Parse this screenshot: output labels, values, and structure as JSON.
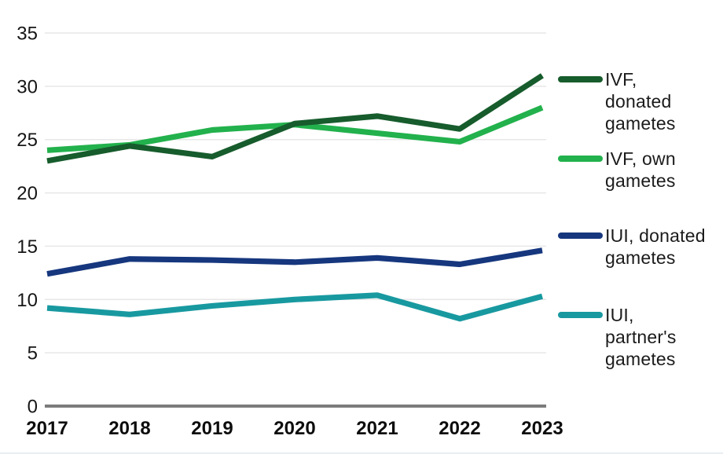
{
  "chart_data": {
    "type": "line",
    "title": "",
    "xlabel": "",
    "ylabel": "",
    "x": [
      "2017",
      "2018",
      "2019",
      "2020",
      "2021",
      "2022",
      "2023"
    ],
    "series": [
      {
        "id": "ivf-donated-gametes",
        "name": "IVF, donated gametes",
        "label_lines": [
          "IVF,",
          "donated",
          "gametes"
        ],
        "color": "#175c2c",
        "values": [
          23.0,
          24.4,
          23.4,
          26.5,
          27.2,
          26.0,
          31.0
        ]
      },
      {
        "id": "ivf-own-gametes",
        "name": "IVF, own gametes",
        "label_lines": [
          "IVF, own",
          "gametes"
        ],
        "color": "#22b14c",
        "values": [
          24.0,
          24.5,
          25.9,
          26.4,
          25.6,
          24.8,
          28.0
        ]
      },
      {
        "id": "iui-donated-gametes",
        "name": "IUI, donated gametes",
        "label_lines": [
          "IUI, donated",
          "gametes"
        ],
        "color": "#16377e",
        "values": [
          12.4,
          13.8,
          13.7,
          13.5,
          13.9,
          13.3,
          14.6
        ]
      },
      {
        "id": "iui-partners-gametes",
        "name": "IUI, partner's gametes",
        "label_lines": [
          "IUI,",
          "partner's",
          "gametes"
        ],
        "color": "#1899a0",
        "values": [
          9.2,
          8.6,
          9.4,
          10.0,
          10.4,
          8.2,
          10.3
        ]
      }
    ],
    "ylim": [
      0,
      35
    ],
    "yticks": [
      0,
      5,
      10,
      15,
      20,
      25,
      30,
      35
    ],
    "grid": "horizontal",
    "gridline_color": "#e7e7e7",
    "axis_line_color": "#7c7c7c",
    "legend_position": "right"
  }
}
